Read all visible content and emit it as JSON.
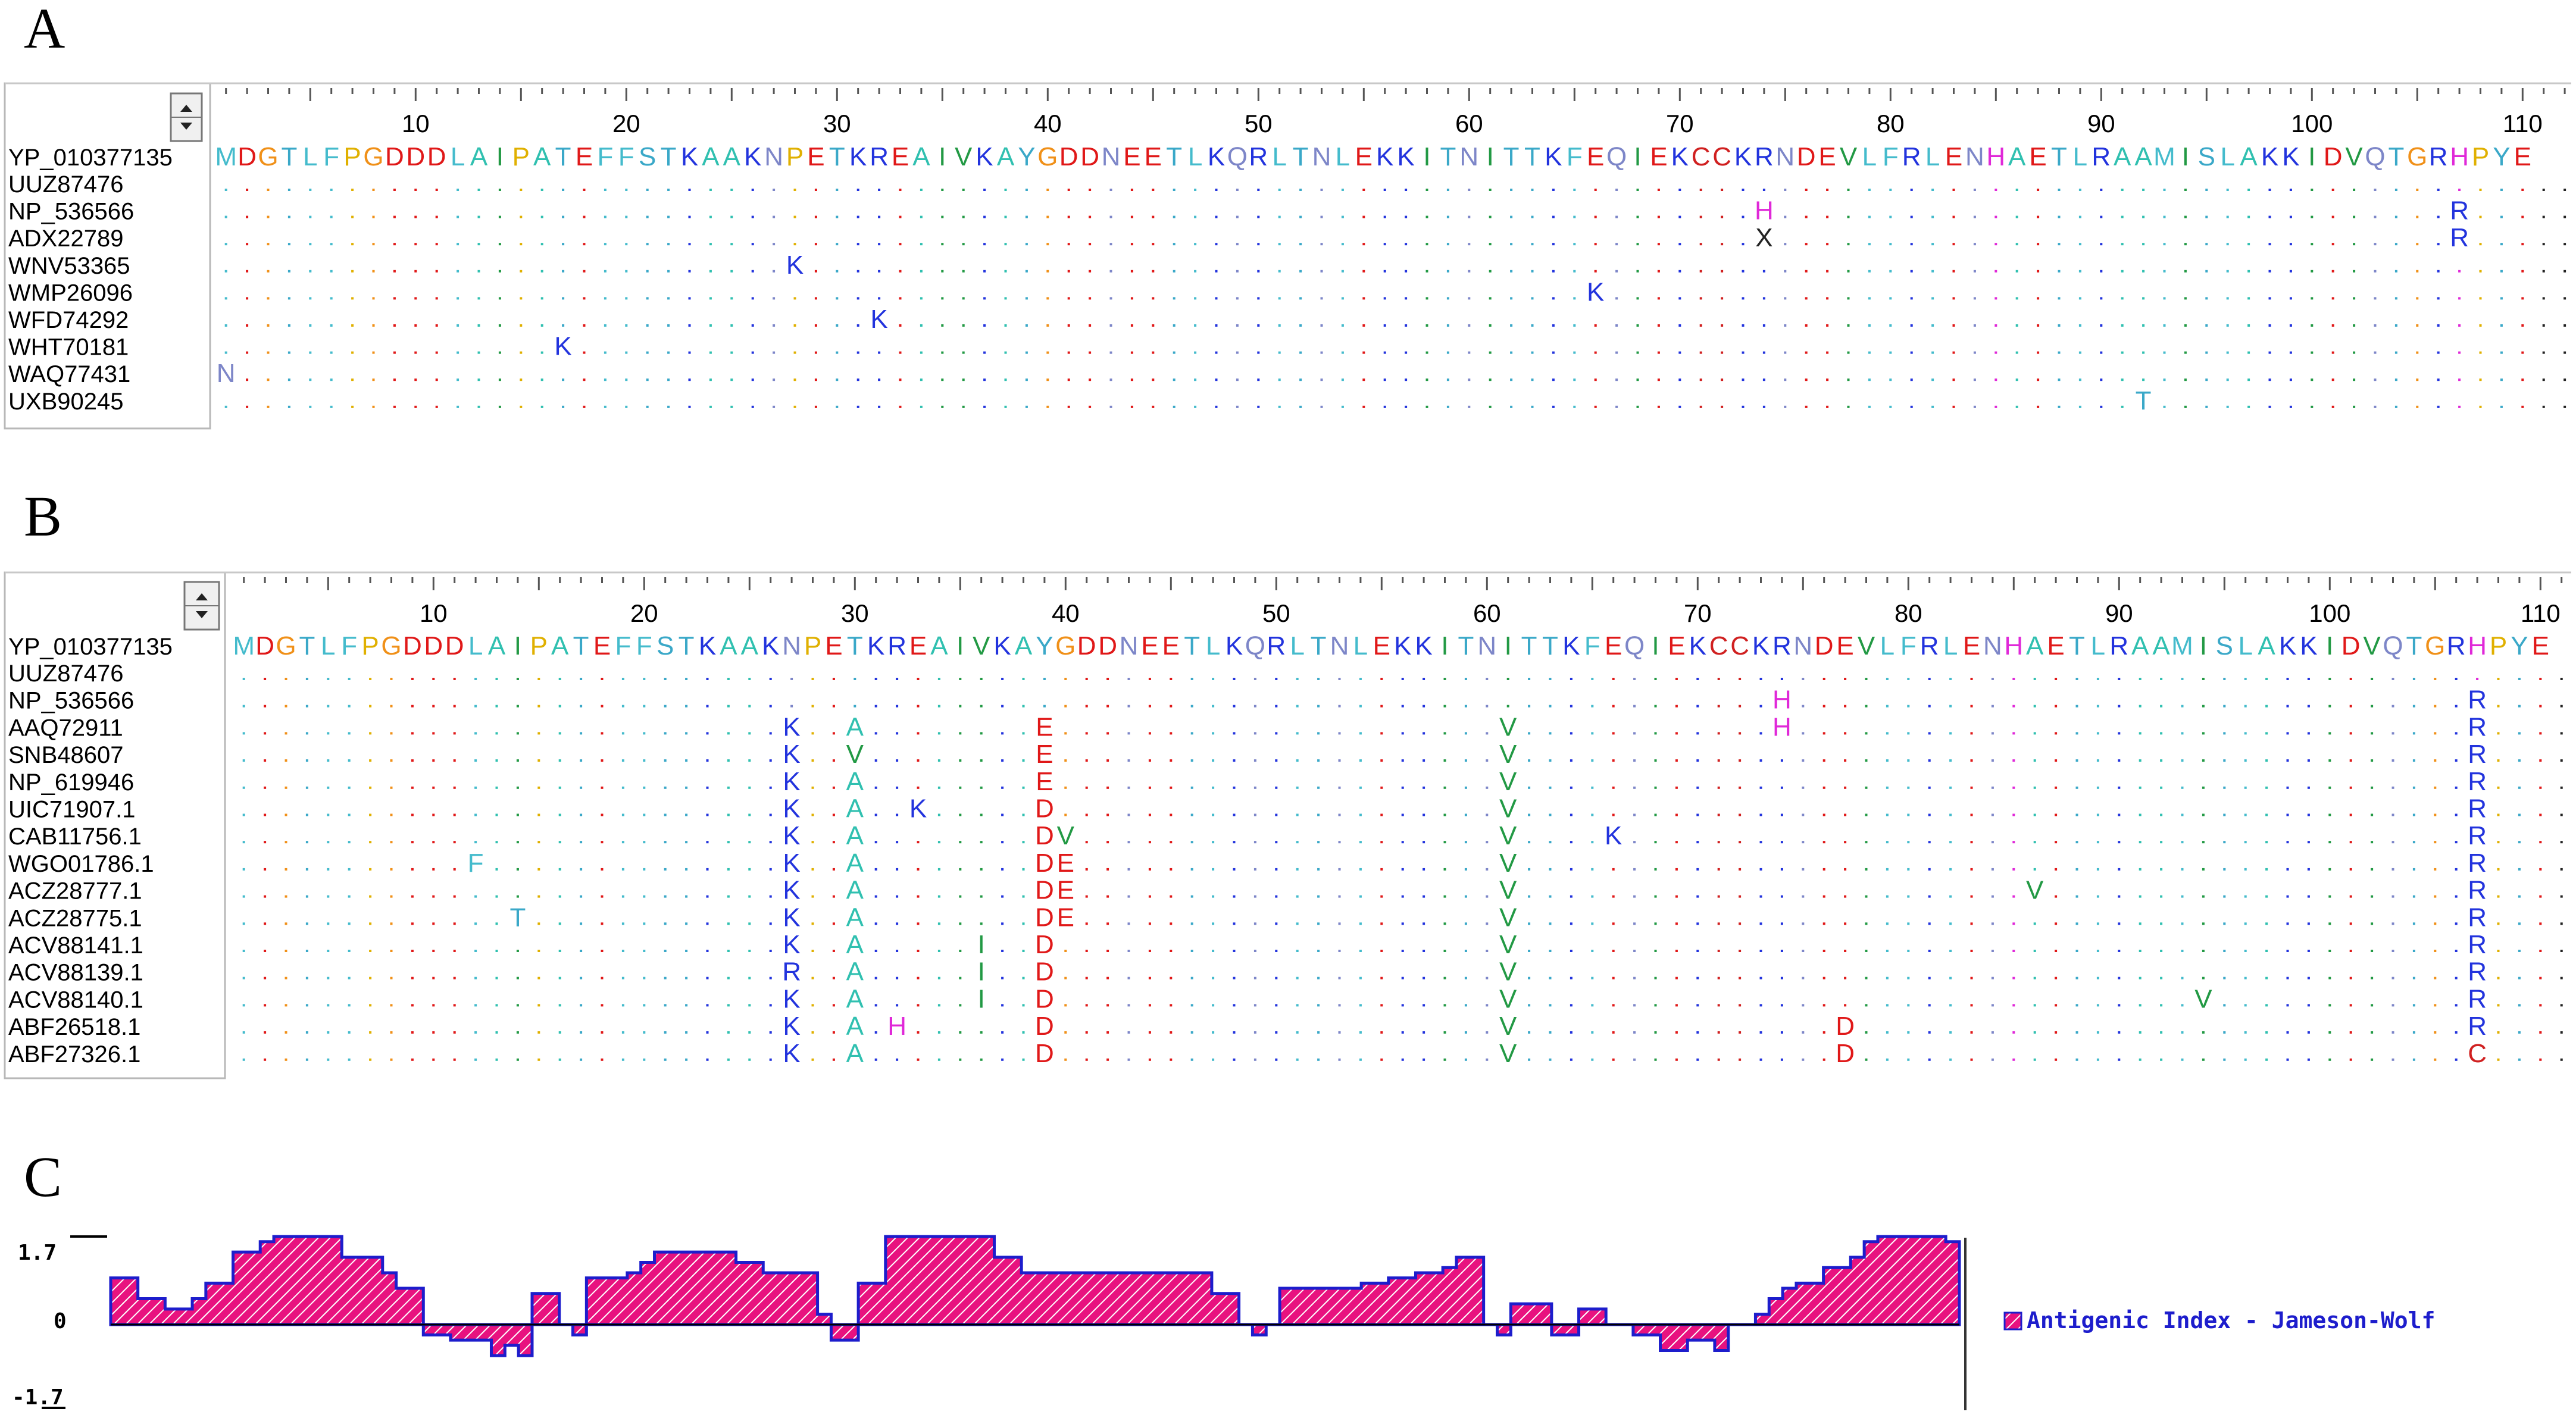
{
  "panels": [
    {
      "letter": "A",
      "ruler_ticks": [
        "10",
        "20",
        "30",
        "40",
        "50",
        "60",
        "70",
        "80",
        "90",
        "100",
        "110"
      ],
      "reference_name": "YP_010377135",
      "reference_sequence": "MDGTLFPGDDDLAIPATEFFSTKAAKNPETKREAIVKAYGDDNEETLKQRLTNLEKKITNITTKFEQIEKCCKRNDEVLFRLENHAETLRAAMISLAKKIDVQTGRHPYE",
      "rows": [
        {
          "name": "UUZ87476",
          "subs": []
        },
        {
          "name": "NP_536566",
          "subs": [
            {
              "pos": 74,
              "aa": "H"
            },
            {
              "pos": 107,
              "aa": "R"
            }
          ]
        },
        {
          "name": "ADX22789",
          "subs": [
            {
              "pos": 74,
              "aa": "X"
            },
            {
              "pos": 107,
              "aa": "R"
            }
          ]
        },
        {
          "name": "WNV53365",
          "subs": [
            {
              "pos": 28,
              "aa": "K"
            }
          ]
        },
        {
          "name": "WMP26096",
          "subs": [
            {
              "pos": 66,
              "aa": "K"
            }
          ]
        },
        {
          "name": "WFD74292",
          "subs": [
            {
              "pos": 32,
              "aa": "K"
            }
          ]
        },
        {
          "name": "WHT70181",
          "subs": [
            {
              "pos": 17,
              "aa": "K"
            }
          ]
        },
        {
          "name": "WAQ77431",
          "subs": [
            {
              "pos": 1,
              "aa": "N"
            }
          ]
        },
        {
          "name": "UXB90245",
          "subs": [
            {
              "pos": 92,
              "aa": "T"
            }
          ]
        }
      ]
    },
    {
      "letter": "B",
      "ruler_ticks": [
        "10",
        "20",
        "30",
        "40",
        "50",
        "60",
        "70",
        "80",
        "90",
        "100",
        "110"
      ],
      "reference_name": "YP_010377135",
      "reference_sequence": "MDGTLFPGDDDLAIPATEFFSTKAAKNPETKREAIVKAYGDDNEETLKQRLTNLEKKITNITTKFEQIEKCCKRNDEVLFRLENHAETLRAAMISLAKKIDVQTGRHPYE",
      "rows": [
        {
          "name": "UUZ87476",
          "subs": []
        },
        {
          "name": "NP_536566",
          "subs": [
            {
              "pos": 74,
              "aa": "H"
            },
            {
              "pos": 107,
              "aa": "R"
            }
          ]
        },
        {
          "name": "AAQ72911",
          "subs": [
            {
              "pos": 27,
              "aa": "K"
            },
            {
              "pos": 30,
              "aa": "A"
            },
            {
              "pos": 39,
              "aa": "E"
            },
            {
              "pos": 61,
              "aa": "V"
            },
            {
              "pos": 74,
              "aa": "H"
            },
            {
              "pos": 107,
              "aa": "R"
            }
          ]
        },
        {
          "name": "SNB48607",
          "subs": [
            {
              "pos": 27,
              "aa": "K"
            },
            {
              "pos": 30,
              "aa": "V"
            },
            {
              "pos": 39,
              "aa": "E"
            },
            {
              "pos": 61,
              "aa": "V"
            },
            {
              "pos": 107,
              "aa": "R"
            }
          ]
        },
        {
          "name": "NP_619946",
          "subs": [
            {
              "pos": 27,
              "aa": "K"
            },
            {
              "pos": 30,
              "aa": "A"
            },
            {
              "pos": 39,
              "aa": "E"
            },
            {
              "pos": 61,
              "aa": "V"
            },
            {
              "pos": 107,
              "aa": "R"
            }
          ]
        },
        {
          "name": "UIC71907.1",
          "subs": [
            {
              "pos": 27,
              "aa": "K"
            },
            {
              "pos": 30,
              "aa": "A"
            },
            {
              "pos": 33,
              "aa": "K"
            },
            {
              "pos": 39,
              "aa": "D"
            },
            {
              "pos": 61,
              "aa": "V"
            },
            {
              "pos": 107,
              "aa": "R"
            }
          ]
        },
        {
          "name": "CAB11756.1",
          "subs": [
            {
              "pos": 27,
              "aa": "K"
            },
            {
              "pos": 30,
              "aa": "A"
            },
            {
              "pos": 39,
              "aa": "D"
            },
            {
              "pos": 40,
              "aa": "V"
            },
            {
              "pos": 61,
              "aa": "V"
            },
            {
              "pos": 66,
              "aa": "K"
            },
            {
              "pos": 107,
              "aa": "R"
            }
          ]
        },
        {
          "name": "WGO01786.1",
          "subs": [
            {
              "pos": 12,
              "aa": "F"
            },
            {
              "pos": 27,
              "aa": "K"
            },
            {
              "pos": 30,
              "aa": "A"
            },
            {
              "pos": 39,
              "aa": "D"
            },
            {
              "pos": 40,
              "aa": "E"
            },
            {
              "pos": 61,
              "aa": "V"
            },
            {
              "pos": 107,
              "aa": "R"
            }
          ]
        },
        {
          "name": "ACZ28777.1",
          "subs": [
            {
              "pos": 27,
              "aa": "K"
            },
            {
              "pos": 30,
              "aa": "A"
            },
            {
              "pos": 39,
              "aa": "D"
            },
            {
              "pos": 40,
              "aa": "E"
            },
            {
              "pos": 61,
              "aa": "V"
            },
            {
              "pos": 86,
              "aa": "V"
            },
            {
              "pos": 107,
              "aa": "R"
            }
          ]
        },
        {
          "name": "ACZ28775.1",
          "subs": [
            {
              "pos": 14,
              "aa": "T"
            },
            {
              "pos": 27,
              "aa": "K"
            },
            {
              "pos": 30,
              "aa": "A"
            },
            {
              "pos": 39,
              "aa": "D"
            },
            {
              "pos": 40,
              "aa": "E"
            },
            {
              "pos": 61,
              "aa": "V"
            },
            {
              "pos": 107,
              "aa": "R"
            }
          ]
        },
        {
          "name": "ACV88141.1",
          "subs": [
            {
              "pos": 27,
              "aa": "K"
            },
            {
              "pos": 30,
              "aa": "A"
            },
            {
              "pos": 36,
              "aa": "I"
            },
            {
              "pos": 39,
              "aa": "D"
            },
            {
              "pos": 61,
              "aa": "V"
            },
            {
              "pos": 107,
              "aa": "R"
            }
          ]
        },
        {
          "name": "ACV88139.1",
          "subs": [
            {
              "pos": 27,
              "aa": "R"
            },
            {
              "pos": 30,
              "aa": "A"
            },
            {
              "pos": 36,
              "aa": "I"
            },
            {
              "pos": 39,
              "aa": "D"
            },
            {
              "pos": 61,
              "aa": "V"
            },
            {
              "pos": 107,
              "aa": "R"
            }
          ]
        },
        {
          "name": "ACV88140.1",
          "subs": [
            {
              "pos": 27,
              "aa": "K"
            },
            {
              "pos": 30,
              "aa": "A"
            },
            {
              "pos": 36,
              "aa": "I"
            },
            {
              "pos": 39,
              "aa": "D"
            },
            {
              "pos": 61,
              "aa": "V"
            },
            {
              "pos": 94,
              "aa": "V"
            },
            {
              "pos": 107,
              "aa": "R"
            }
          ]
        },
        {
          "name": "ABF26518.1",
          "subs": [
            {
              "pos": 27,
              "aa": "K"
            },
            {
              "pos": 30,
              "aa": "A"
            },
            {
              "pos": 32,
              "aa": "H"
            },
            {
              "pos": 39,
              "aa": "D"
            },
            {
              "pos": 61,
              "aa": "V"
            },
            {
              "pos": 77,
              "aa": "D"
            },
            {
              "pos": 107,
              "aa": "R"
            }
          ]
        },
        {
          "name": "ABF27326.1",
          "subs": [
            {
              "pos": 27,
              "aa": "K"
            },
            {
              "pos": 30,
              "aa": "A"
            },
            {
              "pos": 39,
              "aa": "D"
            },
            {
              "pos": 61,
              "aa": "V"
            },
            {
              "pos": 77,
              "aa": "D"
            },
            {
              "pos": 107,
              "aa": "C"
            }
          ]
        }
      ]
    }
  ],
  "profile": {
    "letter": "C",
    "y_labels": {
      "top": "1.7",
      "zero": "0",
      "bottom": "-1.7"
    },
    "legend": "Antigenic Index - Jameson-Wolf",
    "fill_color": "#e8127f",
    "line_color": "#1d1dcc"
  },
  "colors": {
    "K": "#2233dd",
    "R": "#2233dd",
    "E": "#e01818",
    "D": "#e01818",
    "A": "#30c0b0",
    "N": "#7d86c8",
    "Q": "#7d86c8",
    "V": "#229944",
    "I": "#229944",
    "L": "#44bbcc",
    "F": "#44bbcc",
    "M": "#44bbcc",
    "G": "#f09018",
    "P": "#e0b000",
    "S": "#3aa8c8",
    "T": "#3aa8c8",
    "H": "#e028d8",
    "Y": "#3aa8c8",
    "C": "#d02020",
    "W": "#44bbcc",
    "X": "#222222"
  },
  "chart_data": {
    "type": "area",
    "title": "",
    "xlabel": "",
    "ylabel": "",
    "ylim": [
      -1.7,
      1.7
    ],
    "series": [
      {
        "name": "Antigenic Index - Jameson-Wolf",
        "values": [
          0.9,
          0.9,
          0.5,
          0.5,
          0.3,
          0.3,
          0.5,
          0.8,
          0.8,
          1.4,
          1.4,
          1.6,
          1.7,
          1.7,
          1.7,
          1.7,
          1.7,
          1.3,
          1.3,
          1.3,
          1.0,
          0.7,
          0.7,
          -0.2,
          -0.2,
          -0.3,
          -0.3,
          -0.3,
          -0.6,
          -0.4,
          -0.6,
          0.6,
          0.6,
          0.0,
          -0.2,
          0.9,
          0.9,
          0.9,
          1.0,
          1.2,
          1.4,
          1.4,
          1.4,
          1.4,
          1.4,
          1.4,
          1.2,
          1.2,
          1.0,
          1.0,
          1.0,
          1.0,
          0.2,
          -0.3,
          -0.3,
          0.8,
          0.8,
          1.7,
          1.7,
          1.7,
          1.7,
          1.7,
          1.7,
          1.7,
          1.7,
          1.3,
          1.3,
          1.0,
          1.0,
          1.0,
          1.0,
          1.0,
          1.0,
          1.0,
          1.0,
          1.0,
          1.0,
          1.0,
          1.0,
          1.0,
          1.0,
          0.6,
          0.6,
          0.0,
          -0.2,
          0.0,
          0.7,
          0.7,
          0.7,
          0.7,
          0.7,
          0.7,
          0.8,
          0.8,
          0.9,
          0.9,
          1.0,
          1.0,
          1.1,
          1.3,
          1.3,
          0.0,
          -0.2,
          0.4,
          0.4,
          0.4,
          -0.2,
          -0.2,
          0.3,
          0.3,
          0.0,
          0.0,
          -0.2,
          -0.2,
          -0.5,
          -0.5,
          -0.3,
          -0.3,
          -0.5,
          0.0,
          0.0,
          0.2,
          0.5,
          0.7,
          0.8,
          0.8,
          1.1,
          1.1,
          1.3,
          1.6,
          1.7,
          1.7,
          1.7,
          1.7,
          1.7,
          1.6
        ]
      }
    ]
  }
}
